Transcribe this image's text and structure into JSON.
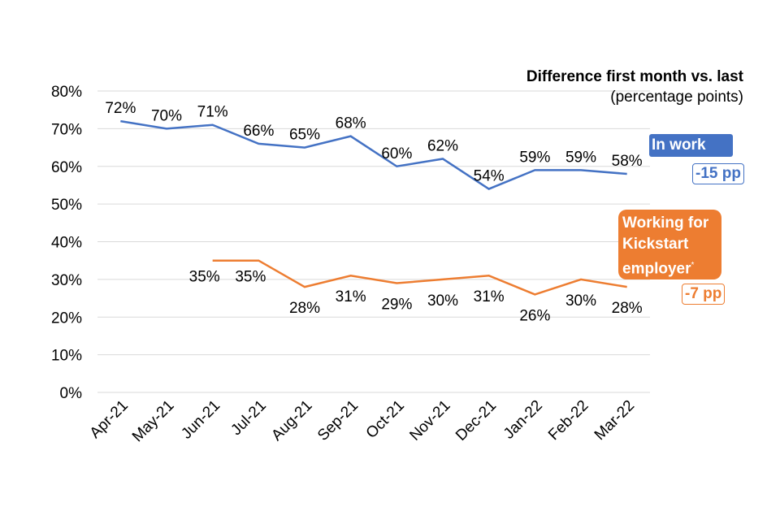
{
  "chart_data": {
    "type": "line",
    "categories": [
      "Apr-21",
      "May-21",
      "Jun-21",
      "Jul-21",
      "Aug-21",
      "Sep-21",
      "Oct-21",
      "Nov-21",
      "Dec-21",
      "Jan-22",
      "Feb-22",
      "Mar-22"
    ],
    "ylim": [
      0,
      80
    ],
    "yticks": [
      "0%",
      "10%",
      "20%",
      "30%",
      "40%",
      "50%",
      "60%",
      "70%",
      "80%"
    ],
    "grid": true,
    "series": [
      {
        "name": "In work",
        "color": "#4472C4",
        "values": [
          72,
          70,
          71,
          66,
          65,
          68,
          60,
          62,
          54,
          59,
          59,
          58
        ],
        "diff": "-15 pp"
      },
      {
        "name": "Working for Kickstart employer",
        "footnote_mark": "*",
        "color": "#ED7D31",
        "values": [
          null,
          null,
          35,
          35,
          28,
          31,
          29,
          30,
          31,
          26,
          30,
          28
        ],
        "diff": "-7 pp"
      }
    ],
    "annotation": {
      "title": "Difference first month vs. last",
      "subtitle": "(percentage points)"
    }
  }
}
